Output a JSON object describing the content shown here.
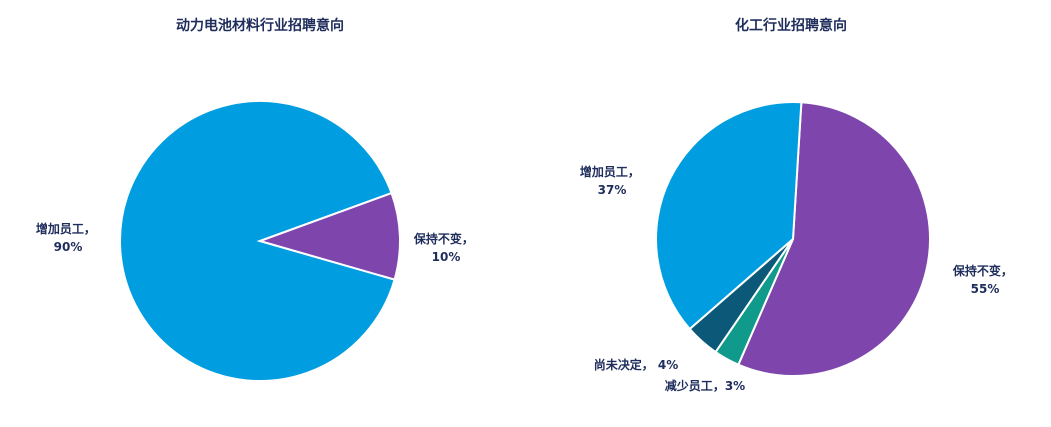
{
  "chart_data": [
    {
      "type": "pie",
      "title": "动力电池材料行业招聘意向",
      "slices": [
        {
          "name": "增加员工",
          "value": 90,
          "label": "90%",
          "color": "#009de0"
        },
        {
          "name": "保持不变",
          "value": 10,
          "label": "10%",
          "color": "#7e46ad"
        }
      ]
    },
    {
      "type": "pie",
      "title": "化工行业招聘意向",
      "slices": [
        {
          "name": "保持不变",
          "value": 55,
          "label": "55%",
          "color": "#7e46ad"
        },
        {
          "name": "减少员工",
          "value": 3,
          "label": "3%",
          "color": "#109a8b"
        },
        {
          "name": "尚未决定",
          "value": 4,
          "label": "4%",
          "color": "#0b5878"
        },
        {
          "name": "增加员工",
          "value": 37,
          "label": "37%",
          "color": "#009de0"
        }
      ]
    }
  ]
}
